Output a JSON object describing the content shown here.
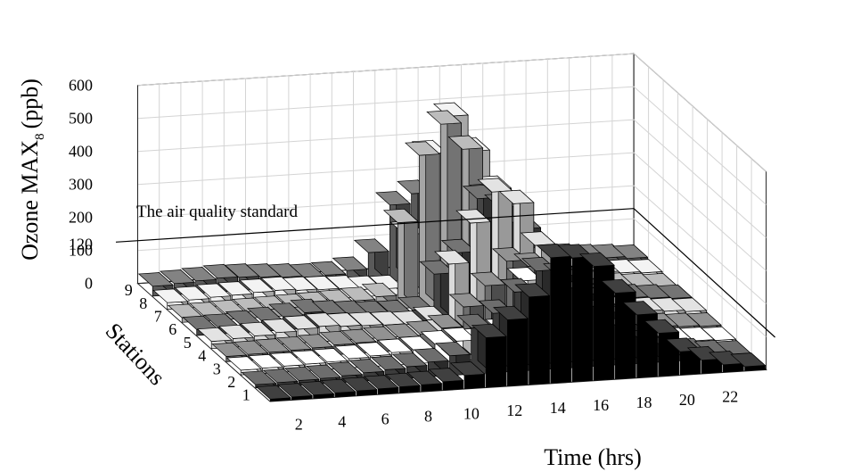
{
  "chart_data": {
    "type": "bar3d",
    "xlabel": "Time (hrs)",
    "ylabel": "Ozone MAX",
    "ylabel_subscript": "8",
    "ylabel_unit": "(ppb)",
    "zlabel": "Stations",
    "x": [
      1,
      2,
      3,
      4,
      5,
      6,
      7,
      8,
      9,
      10,
      11,
      12,
      13,
      14,
      15,
      16,
      17,
      18,
      19,
      20,
      21,
      22,
      23
    ],
    "x_tick_labels": [
      "2",
      "4",
      "6",
      "8",
      "10",
      "12",
      "14",
      "16",
      "18",
      "20",
      "22"
    ],
    "x_tick_values": [
      2,
      4,
      6,
      8,
      10,
      12,
      14,
      16,
      18,
      20,
      22
    ],
    "stations": [
      1,
      2,
      3,
      4,
      5,
      6,
      7,
      8,
      9
    ],
    "station_tick_labels": [
      "1",
      "2",
      "3",
      "4",
      "5",
      "6",
      "7",
      "8",
      "9"
    ],
    "y_tick_labels": [
      "0",
      "100",
      "120",
      "200",
      "300",
      "400",
      "500",
      "600"
    ],
    "y_tick_values": [
      0,
      100,
      120,
      200,
      300,
      400,
      500,
      600
    ],
    "ylim": [
      0,
      600
    ],
    "annotation": {
      "text": "The air quality standard",
      "value": 120
    },
    "colors": [
      "#000000",
      "#3c3c3c",
      "#ffffff",
      "#6e6e6e",
      "#dadada",
      "#454545",
      "#a5a5a5",
      "#efefef",
      "#5a5a5a"
    ],
    "series": [
      {
        "station": 1,
        "values": [
          6,
          8,
          10,
          12,
          14,
          16,
          18,
          20,
          25,
          40,
          150,
          200,
          265,
          380,
          375,
          345,
          260,
          190,
          130,
          70,
          40,
          22,
          12
        ]
      },
      {
        "station": 2,
        "values": [
          10,
          12,
          14,
          16,
          20,
          25,
          30,
          35,
          45,
          60,
          140,
          180,
          240,
          300,
          280,
          220,
          160,
          100,
          60,
          35,
          25,
          15,
          10
        ]
      },
      {
        "station": 3,
        "values": [
          14,
          16,
          18,
          20,
          22,
          28,
          32,
          38,
          42,
          55,
          60,
          55,
          80,
          230,
          170,
          120,
          70,
          40,
          30,
          22,
          18,
          15,
          12
        ]
      },
      {
        "station": 4,
        "values": [
          16,
          18,
          20,
          22,
          25,
          30,
          32,
          36,
          40,
          45,
          60,
          120,
          180,
          250,
          230,
          170,
          120,
          70,
          45,
          30,
          22,
          18,
          15
        ]
      },
      {
        "station": 5,
        "values": [
          22,
          26,
          30,
          36,
          42,
          46,
          42,
          40,
          38,
          35,
          45,
          210,
          330,
          420,
          380,
          250,
          150,
          90,
          55,
          38,
          30,
          25,
          20
        ]
      },
      {
        "station": 6,
        "values": [
          18,
          20,
          26,
          32,
          40,
          48,
          40,
          35,
          30,
          28,
          35,
          140,
          200,
          360,
          330,
          260,
          160,
          100,
          60,
          40,
          30,
          25,
          20
        ]
      },
      {
        "station": 7,
        "values": [
          14,
          16,
          18,
          20,
          22,
          24,
          26,
          28,
          32,
          40,
          260,
          460,
          550,
          470,
          320,
          210,
          140,
          80,
          50,
          35,
          25,
          20,
          15
        ]
      },
      {
        "station": 8,
        "values": [
          20,
          24,
          28,
          30,
          34,
          36,
          32,
          30,
          28,
          22,
          20,
          180,
          420,
          530,
          420,
          300,
          170,
          90,
          50,
          36,
          28,
          22,
          18
        ]
      },
      {
        "station": 9,
        "values": [
          30,
          34,
          38,
          42,
          40,
          36,
          32,
          28,
          30,
          40,
          90,
          230,
          260,
          300,
          280,
          220,
          140,
          80,
          50,
          38,
          32,
          28,
          22
        ]
      }
    ]
  }
}
